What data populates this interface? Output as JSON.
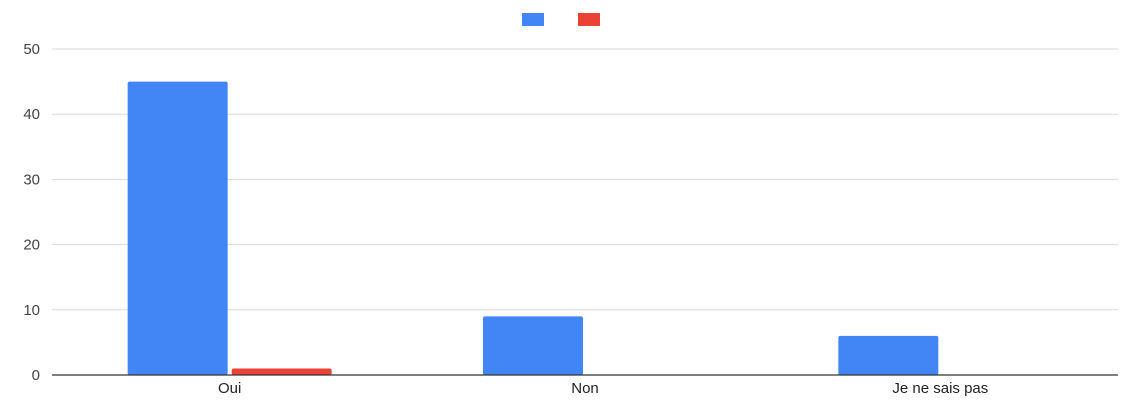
{
  "chart_data": {
    "type": "bar",
    "categories": [
      "Oui",
      "Non",
      "Je ne sais pas"
    ],
    "series": [
      {
        "color": "#4285f4",
        "values": [
          45,
          9,
          6
        ]
      },
      {
        "color": "#ea4335",
        "values": [
          1,
          0,
          0
        ]
      }
    ],
    "title": "",
    "xlabel": "",
    "ylabel": "",
    "ylim": [
      0,
      50
    ],
    "yticks": [
      0,
      10,
      20,
      30,
      40,
      50
    ],
    "grid": true,
    "legend_position": "top-center"
  }
}
